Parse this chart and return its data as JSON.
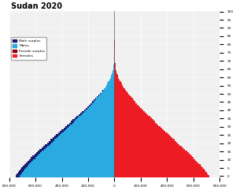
{
  "title": "Sudan 2020",
  "male_color": "#29ABE2",
  "female_color": "#ED1C24",
  "male_surplus_color": "#1a1a6e",
  "female_surplus_color": "#8B0000",
  "background_color": "#f0f0f0",
  "xlim": [
    -800000,
    800000
  ],
  "xticks": [
    -600000,
    -400000,
    -200000,
    0,
    200000,
    400000,
    600000
  ],
  "xtick_labels": [
    "600,000",
    "400,000",
    "200,000",
    "0",
    "200,000",
    "400,000",
    "600,000"
  ],
  "extra_xtick": 800000,
  "extra_xtick_label": "800,000",
  "ages": [
    0,
    1,
    2,
    3,
    4,
    5,
    6,
    7,
    8,
    9,
    10,
    11,
    12,
    13,
    14,
    15,
    16,
    17,
    18,
    19,
    20,
    21,
    22,
    23,
    24,
    25,
    26,
    27,
    28,
    29,
    30,
    31,
    32,
    33,
    34,
    35,
    36,
    37,
    38,
    39,
    40,
    41,
    42,
    43,
    44,
    45,
    46,
    47,
    48,
    49,
    50,
    51,
    52,
    53,
    54,
    55,
    56,
    57,
    58,
    59,
    60,
    61,
    62,
    63,
    64,
    65,
    66,
    67,
    68,
    69,
    70,
    71,
    72,
    73,
    74,
    75,
    76,
    77,
    78,
    79,
    80,
    81,
    82,
    83,
    84,
    85,
    86,
    87,
    88,
    89,
    90,
    91,
    92,
    93,
    94,
    95,
    96,
    97,
    98,
    99,
    100
  ],
  "male_pop": [
    750000,
    742000,
    733000,
    724000,
    715000,
    706000,
    695000,
    684000,
    672000,
    660000,
    648000,
    635000,
    622000,
    609000,
    596000,
    582000,
    569000,
    555000,
    541000,
    527000,
    513000,
    499000,
    485000,
    471000,
    457000,
    443000,
    429000,
    415000,
    401000,
    387000,
    373000,
    359000,
    345000,
    331000,
    317000,
    303000,
    289000,
    275000,
    261000,
    247000,
    233000,
    220000,
    207000,
    194000,
    181000,
    168000,
    156000,
    144000,
    132000,
    121000,
    110000,
    100000,
    90000,
    80000,
    71000,
    63000,
    55000,
    48000,
    41000,
    35000,
    29000,
    24000,
    20000,
    16000,
    13000,
    10500,
    8500,
    6800,
    5400,
    4200,
    3200,
    2400,
    1800,
    1350,
    1000,
    740,
    540,
    390,
    280,
    200,
    140,
    100,
    70,
    48,
    33,
    22,
    15,
    10,
    6,
    4,
    2,
    1,
    1,
    0,
    0,
    0,
    0,
    0,
    0,
    0,
    0
  ],
  "female_pop": [
    718000,
    710000,
    701000,
    692000,
    683000,
    674000,
    663000,
    652000,
    640000,
    628000,
    616000,
    603000,
    590000,
    577000,
    564000,
    551000,
    537000,
    524000,
    510000,
    496000,
    483000,
    469000,
    455000,
    442000,
    428000,
    415000,
    401000,
    388000,
    375000,
    361000,
    348000,
    335000,
    322000,
    309000,
    296000,
    283000,
    270000,
    257000,
    244000,
    232000,
    219000,
    207000,
    195000,
    183000,
    172000,
    160000,
    149000,
    138000,
    128000,
    117000,
    107000,
    97000,
    88000,
    79000,
    70000,
    62000,
    55000,
    48000,
    41000,
    35000,
    30000,
    25000,
    21000,
    17000,
    14000,
    11500,
    9500,
    7800,
    6400,
    5200,
    4200,
    3300,
    2600,
    2000,
    1500,
    1120,
    830,
    610,
    450,
    330,
    240,
    170,
    120,
    84,
    58,
    40,
    27,
    18,
    12,
    7,
    4,
    3,
    2,
    1,
    0,
    0,
    0,
    0,
    0,
    0,
    0
  ]
}
